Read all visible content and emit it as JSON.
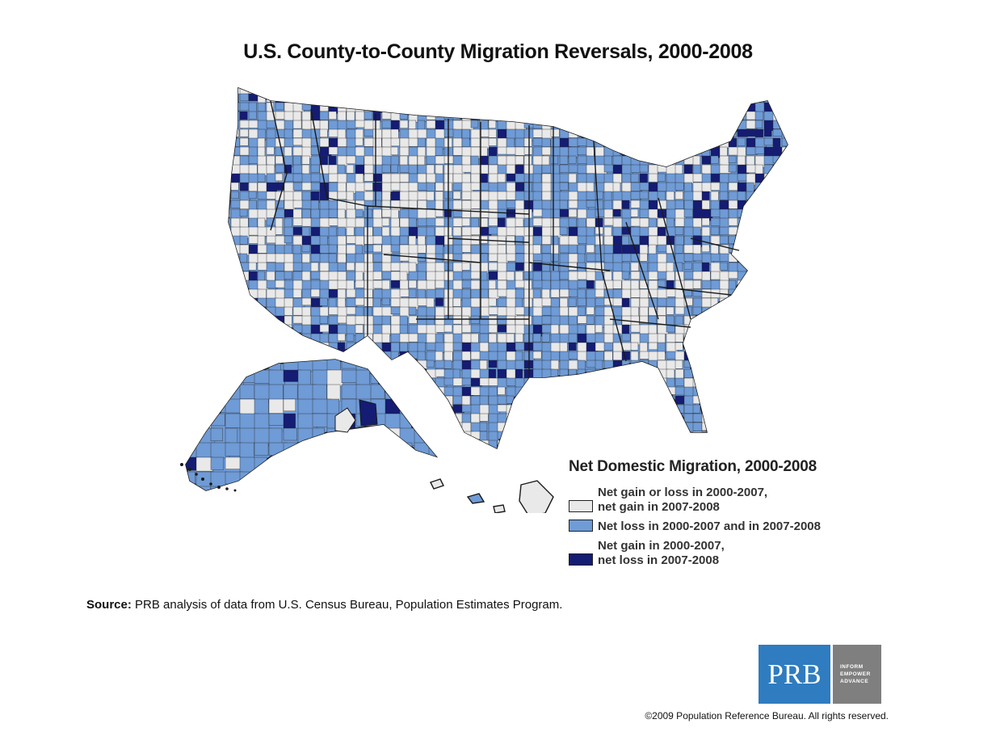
{
  "title": "U.S. County-to-County Migration Reversals, 2000-2008",
  "legend": {
    "title": "Net Domestic Migration, 2000-2008",
    "items": [
      {
        "label": "Net gain or loss in 2000-2007,\nnet gain in 2007-2008",
        "color": "#e9e9e9"
      },
      {
        "label": "Net loss in 2000-2007 and in 2007-2008",
        "color": "#6f9bd6"
      },
      {
        "label": "Net gain in 2000-2007,\nnet loss in 2007-2008",
        "color": "#141c73"
      }
    ]
  },
  "source": {
    "label": "Source:",
    "text": " PRB analysis of data from U.S. Census Bureau, Population Estimates Program."
  },
  "logo": {
    "mark": "PRB",
    "tagline": [
      "INFORM",
      "EMPOWER",
      "ADVANCE"
    ],
    "mark_color": "#2f7cc0",
    "tag_color": "#7f7f7f"
  },
  "copyright": "©2009 Population Reference Bureau. All rights reserved.",
  "map_colors": {
    "gain_recent": "#e9e9e9",
    "loss_both": "#6f9bd6",
    "reversal": "#141c73",
    "border": "#1a1a1a"
  }
}
